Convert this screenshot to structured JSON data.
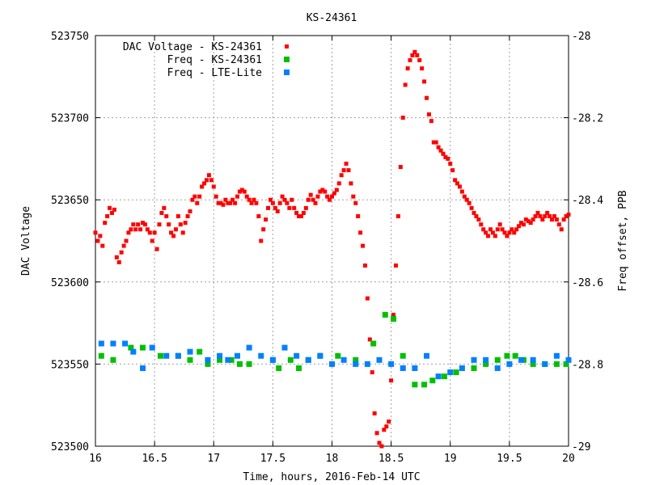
{
  "chart_data": {
    "type": "scatter",
    "title": "KS-24361",
    "xlabel": "Time, hours, 2016-Feb-14 UTC",
    "ylabel": "DAC Voltage",
    "y2label": "Freq offset, PPB",
    "xlim": [
      16,
      20
    ],
    "ylim": [
      523500,
      523750
    ],
    "y2lim": [
      -29,
      -28
    ],
    "x_ticks": [
      "16",
      "16.5",
      "17",
      "17.5",
      "18",
      "18.5",
      "19",
      "19.5",
      "20"
    ],
    "y_ticks": [
      "523500",
      "523550",
      "523600",
      "523650",
      "523700",
      "523750"
    ],
    "y2_ticks": [
      "-29",
      "-28.8",
      "-28.6",
      "-28.4",
      "-28.2",
      "-28"
    ],
    "grid": true,
    "legend_position": "top-left",
    "colors": {
      "dac": "#ff0000",
      "freq_ks": "#00c000",
      "freq_lte": "#0080ff"
    },
    "series": [
      {
        "name": "DAC Voltage - KS-24361",
        "axis": "left",
        "marker": "small-point",
        "points": [
          [
            16.0,
            523630
          ],
          [
            16.02,
            523625
          ],
          [
            16.04,
            523628
          ],
          [
            16.06,
            523622
          ],
          [
            16.08,
            523636
          ],
          [
            16.1,
            523640
          ],
          [
            16.12,
            523645
          ],
          [
            16.14,
            523642
          ],
          [
            16.16,
            523644
          ],
          [
            16.18,
            523615
          ],
          [
            16.2,
            523612
          ],
          [
            16.22,
            523618
          ],
          [
            16.24,
            523622
          ],
          [
            16.26,
            523625
          ],
          [
            16.28,
            523630
          ],
          [
            16.3,
            523632
          ],
          [
            16.32,
            523635
          ],
          [
            16.34,
            523632
          ],
          [
            16.36,
            523635
          ],
          [
            16.38,
            523632
          ],
          [
            16.4,
            523636
          ],
          [
            16.42,
            523635
          ],
          [
            16.44,
            523632
          ],
          [
            16.46,
            523630
          ],
          [
            16.48,
            523625
          ],
          [
            16.5,
            523630
          ],
          [
            16.52,
            523620
          ],
          [
            16.54,
            523635
          ],
          [
            16.56,
            523642
          ],
          [
            16.58,
            523645
          ],
          [
            16.6,
            523640
          ],
          [
            16.62,
            523635
          ],
          [
            16.64,
            523630
          ],
          [
            16.66,
            523628
          ],
          [
            16.68,
            523632
          ],
          [
            16.7,
            523640
          ],
          [
            16.72,
            523635
          ],
          [
            16.74,
            523630
          ],
          [
            16.76,
            523636
          ],
          [
            16.78,
            523640
          ],
          [
            16.8,
            523643
          ],
          [
            16.82,
            523650
          ],
          [
            16.84,
            523652
          ],
          [
            16.86,
            523648
          ],
          [
            16.88,
            523652
          ],
          [
            16.9,
            523658
          ],
          [
            16.92,
            523660
          ],
          [
            16.94,
            523662
          ],
          [
            16.96,
            523665
          ],
          [
            16.98,
            523662
          ],
          [
            17.0,
            523658
          ],
          [
            17.02,
            523652
          ],
          [
            17.04,
            523648
          ],
          [
            17.06,
            523648
          ],
          [
            17.08,
            523647
          ],
          [
            17.1,
            523650
          ],
          [
            17.12,
            523648
          ],
          [
            17.14,
            523648
          ],
          [
            17.16,
            523650
          ],
          [
            17.18,
            523648
          ],
          [
            17.2,
            523652
          ],
          [
            17.22,
            523655
          ],
          [
            17.24,
            523656
          ],
          [
            17.26,
            523655
          ],
          [
            17.28,
            523652
          ],
          [
            17.3,
            523650
          ],
          [
            17.32,
            523648
          ],
          [
            17.34,
            523650
          ],
          [
            17.36,
            523648
          ],
          [
            17.38,
            523640
          ],
          [
            17.4,
            523625
          ],
          [
            17.42,
            523632
          ],
          [
            17.44,
            523638
          ],
          [
            17.46,
            523645
          ],
          [
            17.48,
            523650
          ],
          [
            17.5,
            523648
          ],
          [
            17.52,
            523645
          ],
          [
            17.54,
            523643
          ],
          [
            17.56,
            523648
          ],
          [
            17.58,
            523652
          ],
          [
            17.6,
            523650
          ],
          [
            17.62,
            523648
          ],
          [
            17.64,
            523645
          ],
          [
            17.66,
            523650
          ],
          [
            17.68,
            523645
          ],
          [
            17.7,
            523642
          ],
          [
            17.72,
            523640
          ],
          [
            17.74,
            523640
          ],
          [
            17.76,
            523642
          ],
          [
            17.78,
            523645
          ],
          [
            17.8,
            523650
          ],
          [
            17.82,
            523653
          ],
          [
            17.84,
            523650
          ],
          [
            17.86,
            523648
          ],
          [
            17.88,
            523652
          ],
          [
            17.9,
            523655
          ],
          [
            17.92,
            523656
          ],
          [
            17.94,
            523655
          ],
          [
            17.96,
            523652
          ],
          [
            17.98,
            523650
          ],
          [
            18.0,
            523652
          ],
          [
            18.02,
            523654
          ],
          [
            18.04,
            523656
          ],
          [
            18.06,
            523660
          ],
          [
            18.08,
            523665
          ],
          [
            18.1,
            523668
          ],
          [
            18.12,
            523672
          ],
          [
            18.14,
            523668
          ],
          [
            18.16,
            523660
          ],
          [
            18.18,
            523652
          ],
          [
            18.2,
            523648
          ],
          [
            18.22,
            523640
          ],
          [
            18.24,
            523630
          ],
          [
            18.26,
            523622
          ],
          [
            18.28,
            523610
          ],
          [
            18.3,
            523590
          ],
          [
            18.32,
            523565
          ],
          [
            18.34,
            523545
          ],
          [
            18.36,
            523520
          ],
          [
            18.38,
            523508
          ],
          [
            18.4,
            523502
          ],
          [
            18.42,
            523500
          ],
          [
            18.44,
            523510
          ],
          [
            18.46,
            523512
          ],
          [
            18.48,
            523515
          ],
          [
            18.5,
            523540
          ],
          [
            18.52,
            523580
          ],
          [
            18.54,
            523610
          ],
          [
            18.56,
            523640
          ],
          [
            18.58,
            523670
          ],
          [
            18.6,
            523700
          ],
          [
            18.62,
            523720
          ],
          [
            18.64,
            523730
          ],
          [
            18.66,
            523735
          ],
          [
            18.68,
            523738
          ],
          [
            18.7,
            523740
          ],
          [
            18.72,
            523738
          ],
          [
            18.74,
            523735
          ],
          [
            18.76,
            523730
          ],
          [
            18.78,
            523722
          ],
          [
            18.8,
            523712
          ],
          [
            18.82,
            523702
          ],
          [
            18.84,
            523698
          ],
          [
            18.86,
            523685
          ],
          [
            18.88,
            523685
          ],
          [
            18.9,
            523682
          ],
          [
            18.92,
            523680
          ],
          [
            18.94,
            523678
          ],
          [
            18.96,
            523676
          ],
          [
            18.98,
            523675
          ],
          [
            19.0,
            523672
          ],
          [
            19.02,
            523668
          ],
          [
            19.04,
            523662
          ],
          [
            19.06,
            523660
          ],
          [
            19.08,
            523658
          ],
          [
            19.1,
            523655
          ],
          [
            19.12,
            523652
          ],
          [
            19.14,
            523650
          ],
          [
            19.16,
            523648
          ],
          [
            19.18,
            523645
          ],
          [
            19.2,
            523642
          ],
          [
            19.22,
            523640
          ],
          [
            19.24,
            523638
          ],
          [
            19.26,
            523635
          ],
          [
            19.28,
            523632
          ],
          [
            19.3,
            523630
          ],
          [
            19.32,
            523628
          ],
          [
            19.34,
            523632
          ],
          [
            19.36,
            523630
          ],
          [
            19.38,
            523628
          ],
          [
            19.4,
            523632
          ],
          [
            19.42,
            523635
          ],
          [
            19.44,
            523632
          ],
          [
            19.46,
            523630
          ],
          [
            19.48,
            523628
          ],
          [
            19.5,
            523630
          ],
          [
            19.52,
            523632
          ],
          [
            19.54,
            523630
          ],
          [
            19.56,
            523632
          ],
          [
            19.58,
            523634
          ],
          [
            19.6,
            523636
          ],
          [
            19.62,
            523635
          ],
          [
            19.64,
            523638
          ],
          [
            19.66,
            523637
          ],
          [
            19.68,
            523636
          ],
          [
            19.7,
            523638
          ],
          [
            19.72,
            523640
          ],
          [
            19.74,
            523642
          ],
          [
            19.76,
            523640
          ],
          [
            19.78,
            523638
          ],
          [
            19.8,
            523640
          ],
          [
            19.82,
            523642
          ],
          [
            19.84,
            523640
          ],
          [
            19.86,
            523638
          ],
          [
            19.88,
            523640
          ],
          [
            19.9,
            523638
          ],
          [
            19.92,
            523635
          ],
          [
            19.94,
            523632
          ],
          [
            19.96,
            523638
          ],
          [
            19.98,
            523640
          ],
          [
            20.0,
            523641
          ]
        ]
      },
      {
        "name": "Freq - KS-24361",
        "axis": "right",
        "marker": "square",
        "points": [
          [
            16.05,
            -28.78
          ],
          [
            16.15,
            -28.79
          ],
          [
            16.3,
            -28.76
          ],
          [
            16.4,
            -28.76
          ],
          [
            16.55,
            -28.78
          ],
          [
            16.7,
            -28.78
          ],
          [
            16.8,
            -28.79
          ],
          [
            16.88,
            -28.77
          ],
          [
            16.95,
            -28.8
          ],
          [
            17.05,
            -28.79
          ],
          [
            17.15,
            -28.79
          ],
          [
            17.22,
            -28.8
          ],
          [
            17.3,
            -28.8
          ],
          [
            17.5,
            -28.79
          ],
          [
            17.55,
            -28.81
          ],
          [
            17.65,
            -28.79
          ],
          [
            17.72,
            -28.81
          ],
          [
            17.8,
            -28.79
          ],
          [
            17.9,
            -28.78
          ],
          [
            18.05,
            -28.78
          ],
          [
            18.2,
            -28.79
          ],
          [
            18.35,
            -28.75
          ],
          [
            18.45,
            -28.68
          ],
          [
            18.52,
            -28.69
          ],
          [
            18.6,
            -28.78
          ],
          [
            18.7,
            -28.85
          ],
          [
            18.78,
            -28.85
          ],
          [
            18.85,
            -28.84
          ],
          [
            18.95,
            -28.83
          ],
          [
            19.05,
            -28.82
          ],
          [
            19.2,
            -28.81
          ],
          [
            19.3,
            -28.8
          ],
          [
            19.4,
            -28.79
          ],
          [
            19.48,
            -28.78
          ],
          [
            19.55,
            -28.78
          ],
          [
            19.62,
            -28.79
          ],
          [
            19.7,
            -28.8
          ],
          [
            19.8,
            -28.8
          ],
          [
            19.9,
            -28.8
          ],
          [
            19.98,
            -28.8
          ]
        ]
      },
      {
        "name": "Freq - LTE-Lite",
        "axis": "right",
        "marker": "square",
        "points": [
          [
            16.05,
            -28.75
          ],
          [
            16.15,
            -28.75
          ],
          [
            16.25,
            -28.75
          ],
          [
            16.32,
            -28.77
          ],
          [
            16.4,
            -28.81
          ],
          [
            16.48,
            -28.76
          ],
          [
            16.6,
            -28.78
          ],
          [
            16.7,
            -28.78
          ],
          [
            16.8,
            -28.77
          ],
          [
            16.95,
            -28.79
          ],
          [
            17.05,
            -28.78
          ],
          [
            17.12,
            -28.79
          ],
          [
            17.2,
            -28.78
          ],
          [
            17.3,
            -28.76
          ],
          [
            17.4,
            -28.78
          ],
          [
            17.5,
            -28.79
          ],
          [
            17.6,
            -28.76
          ],
          [
            17.7,
            -28.78
          ],
          [
            17.8,
            -28.79
          ],
          [
            17.9,
            -28.78
          ],
          [
            18.0,
            -28.8
          ],
          [
            18.1,
            -28.79
          ],
          [
            18.2,
            -28.8
          ],
          [
            18.3,
            -28.8
          ],
          [
            18.4,
            -28.79
          ],
          [
            18.5,
            -28.8
          ],
          [
            18.6,
            -28.81
          ],
          [
            18.7,
            -28.81
          ],
          [
            18.8,
            -28.78
          ],
          [
            18.9,
            -28.83
          ],
          [
            19.0,
            -28.82
          ],
          [
            19.1,
            -28.81
          ],
          [
            19.2,
            -28.79
          ],
          [
            19.3,
            -28.79
          ],
          [
            19.4,
            -28.81
          ],
          [
            19.5,
            -28.8
          ],
          [
            19.6,
            -28.79
          ],
          [
            19.7,
            -28.79
          ],
          [
            19.8,
            -28.8
          ],
          [
            19.9,
            -28.78
          ],
          [
            20.0,
            -28.79
          ]
        ]
      }
    ]
  }
}
